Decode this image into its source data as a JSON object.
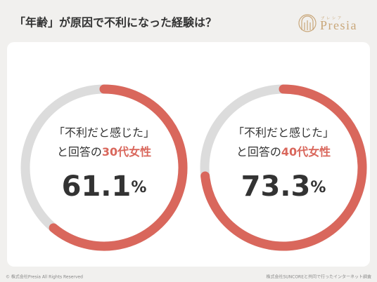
{
  "header": {
    "title": "「年齢」が原因で不利になった経験は？",
    "logo": "Presia",
    "logo_kana": "プレシア"
  },
  "chart_data": [
    {
      "type": "donut",
      "label_line1": "「不利だと感じた」",
      "label_prefix": "と回答の",
      "label_highlight": "30代女性",
      "values": [
        61.1
      ],
      "unit": "%",
      "ylim": [
        0,
        100
      ],
      "color": "#d9675c",
      "track_color": "#dcdcdc"
    },
    {
      "type": "donut",
      "label_line1": "「不利だと感じた」",
      "label_prefix": "と回答の",
      "label_highlight": "40代女性",
      "values": [
        73.3
      ],
      "unit": "%",
      "ylim": [
        0,
        100
      ],
      "color": "#d9675c",
      "track_color": "#dcdcdc"
    }
  ],
  "footer": {
    "left": "© 株式会社Presia All Rights Reserved",
    "right": "株式会社SUNCOREと共同で行ったインターネット調査"
  }
}
